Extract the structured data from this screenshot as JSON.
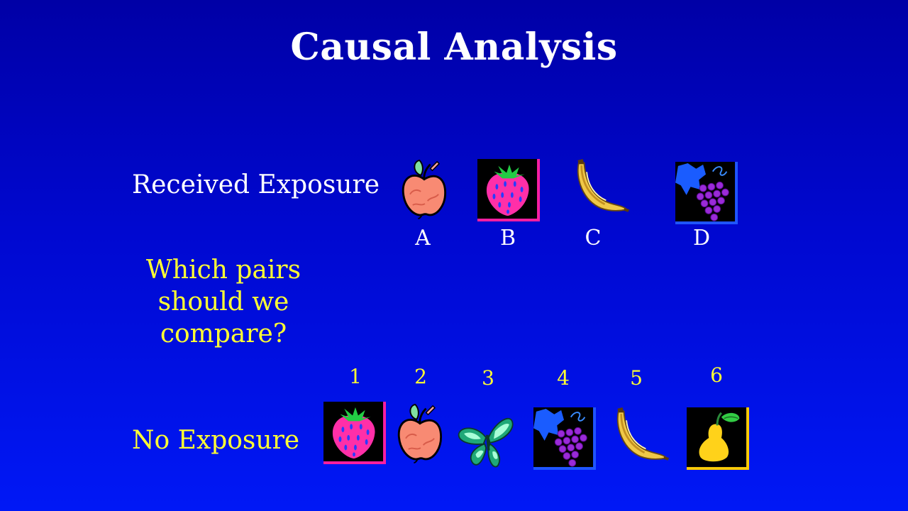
{
  "title": "Causal Analysis",
  "received": {
    "label": "Received Exposure",
    "items": [
      {
        "letter": "A",
        "icon": "apple-icon"
      },
      {
        "letter": "B",
        "icon": "strawberry-icon"
      },
      {
        "letter": "C",
        "icon": "banana-icon"
      },
      {
        "letter": "D",
        "icon": "grapes-icon"
      }
    ]
  },
  "question": {
    "line1": "Which pairs",
    "line2": "should we",
    "line3": "compare?"
  },
  "no_exposure": {
    "label": "No Exposure",
    "items": [
      {
        "number": "1",
        "icon": "strawberry-icon"
      },
      {
        "number": "2",
        "icon": "apple-icon"
      },
      {
        "number": "3",
        "icon": "butterfly-icon"
      },
      {
        "number": "4",
        "icon": "grapes-icon"
      },
      {
        "number": "5",
        "icon": "banana-icon"
      },
      {
        "number": "6",
        "icon": "pear-icon"
      }
    ]
  },
  "colors": {
    "background_top": "#0000a6",
    "background_bottom": "#0018f6",
    "title": "#ffffff",
    "highlight_text": "#ffff33"
  }
}
